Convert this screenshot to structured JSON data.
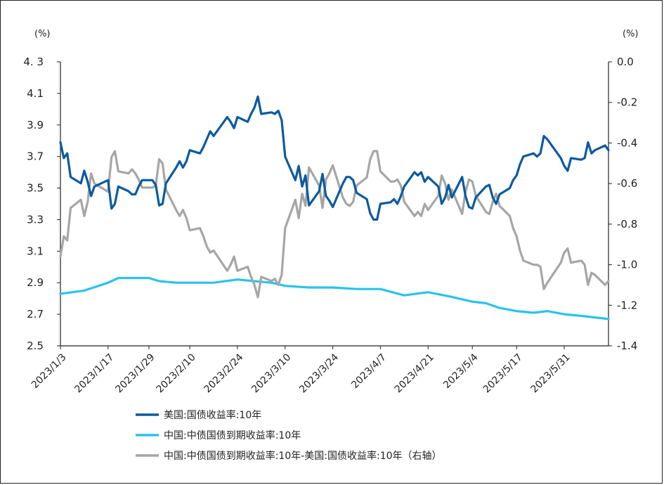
{
  "chart_data": {
    "type": "line",
    "left_axis": {
      "unit": "(%)",
      "ylim": [
        2.5,
        4.3
      ],
      "ticks": [
        "4. 3",
        "4.1",
        "3.9",
        "3.7",
        "3.5",
        "3.3",
        "3.1",
        "2.9",
        "2.7",
        "2.5"
      ]
    },
    "right_axis": {
      "unit": "(%)",
      "ylim": [
        -1.4,
        0.0
      ],
      "ticks": [
        "0.0",
        "-0.2",
        "-0.4",
        "-0.6",
        "-0.8",
        "-1.0",
        "-1.2",
        "-1.4"
      ]
    },
    "x_ticks": [
      "2023/1/3",
      "2023/1/17",
      "2023/1/29",
      "2023/2/10",
      "2023/2/24",
      "2023/3/10",
      "2023/3/24",
      "2023/4/7",
      "2023/4/21",
      "2023/5/4",
      "2023/5/17",
      "2023/5/31"
    ],
    "x_range": [
      "2023-01-03",
      "2023-06-13"
    ],
    "series": [
      {
        "name": "美国:国债收益率:10年",
        "axis": "left",
        "color": "#0b5aa0",
        "x": [
          "2023-01-03",
          "2023-01-04",
          "2023-01-05",
          "2023-01-06",
          "2023-01-09",
          "2023-01-10",
          "2023-01-11",
          "2023-01-12",
          "2023-01-13",
          "2023-01-17",
          "2023-01-18",
          "2023-01-19",
          "2023-01-20",
          "2023-01-23",
          "2023-01-24",
          "2023-01-25",
          "2023-01-26",
          "2023-01-27",
          "2023-01-30",
          "2023-01-31",
          "2023-02-01",
          "2023-02-02",
          "2023-02-03",
          "2023-02-06",
          "2023-02-07",
          "2023-02-08",
          "2023-02-09",
          "2023-02-10",
          "2023-02-13",
          "2023-02-14",
          "2023-02-15",
          "2023-02-16",
          "2023-02-17",
          "2023-02-21",
          "2023-02-22",
          "2023-02-23",
          "2023-02-24",
          "2023-02-27",
          "2023-02-28",
          "2023-03-01",
          "2023-03-02",
          "2023-03-03",
          "2023-03-06",
          "2023-03-07",
          "2023-03-08",
          "2023-03-09",
          "2023-03-10",
          "2023-03-13",
          "2023-03-14",
          "2023-03-15",
          "2023-03-16",
          "2023-03-17",
          "2023-03-20",
          "2023-03-21",
          "2023-03-22",
          "2023-03-23",
          "2023-03-24",
          "2023-03-27",
          "2023-03-28",
          "2023-03-29",
          "2023-03-30",
          "2023-03-31",
          "2023-04-03",
          "2023-04-04",
          "2023-04-05",
          "2023-04-06",
          "2023-04-07",
          "2023-04-10",
          "2023-04-11",
          "2023-04-12",
          "2023-04-13",
          "2023-04-14",
          "2023-04-17",
          "2023-04-18",
          "2023-04-19",
          "2023-04-20",
          "2023-04-21",
          "2023-04-24",
          "2023-04-25",
          "2023-04-26",
          "2023-04-27",
          "2023-04-28",
          "2023-05-01",
          "2023-05-02",
          "2023-05-03",
          "2023-05-04",
          "2023-05-05",
          "2023-05-08",
          "2023-05-09",
          "2023-05-10",
          "2023-05-11",
          "2023-05-12",
          "2023-05-15",
          "2023-05-16",
          "2023-05-17",
          "2023-05-18",
          "2023-05-19",
          "2023-05-22",
          "2023-05-23",
          "2023-05-24",
          "2023-05-25",
          "2023-05-26",
          "2023-05-30",
          "2023-05-31",
          "2023-06-01",
          "2023-06-02",
          "2023-06-05",
          "2023-06-06",
          "2023-06-07",
          "2023-06-08",
          "2023-06-09",
          "2023-06-12",
          "2023-06-13"
        ],
        "values": [
          3.79,
          3.69,
          3.72,
          3.57,
          3.53,
          3.61,
          3.54,
          3.45,
          3.51,
          3.55,
          3.37,
          3.4,
          3.51,
          3.48,
          3.46,
          3.46,
          3.51,
          3.55,
          3.55,
          3.52,
          3.39,
          3.4,
          3.53,
          3.63,
          3.67,
          3.63,
          3.67,
          3.74,
          3.72,
          3.76,
          3.81,
          3.86,
          3.83,
          3.95,
          3.92,
          3.88,
          3.95,
          3.92,
          3.97,
          4.01,
          4.08,
          3.97,
          3.98,
          3.97,
          3.99,
          3.93,
          3.7,
          3.55,
          3.64,
          3.51,
          3.58,
          3.39,
          3.48,
          3.59,
          3.45,
          3.42,
          3.38,
          3.53,
          3.57,
          3.57,
          3.55,
          3.47,
          3.43,
          3.34,
          3.3,
          3.3,
          3.4,
          3.41,
          3.43,
          3.4,
          3.45,
          3.51,
          3.6,
          3.58,
          3.6,
          3.54,
          3.57,
          3.51,
          3.4,
          3.44,
          3.52,
          3.44,
          3.57,
          3.45,
          3.38,
          3.37,
          3.44,
          3.51,
          3.52,
          3.44,
          3.4,
          3.46,
          3.5,
          3.55,
          3.58,
          3.65,
          3.7,
          3.72,
          3.7,
          3.72,
          3.83,
          3.81,
          3.69,
          3.64,
          3.61,
          3.69,
          3.68,
          3.69,
          3.79,
          3.72,
          3.74,
          3.77,
          3.74
        ]
      },
      {
        "name": "中国:中债国债到期收益率:10年",
        "axis": "left",
        "color": "#29c3ec",
        "x": [
          "2023-01-03",
          "2023-01-10",
          "2023-01-17",
          "2023-01-20",
          "2023-01-29",
          "2023-02-01",
          "2023-02-06",
          "2023-02-10",
          "2023-02-17",
          "2023-02-24",
          "2023-03-01",
          "2023-03-06",
          "2023-03-10",
          "2023-03-17",
          "2023-03-24",
          "2023-03-31",
          "2023-04-07",
          "2023-04-14",
          "2023-04-21",
          "2023-04-28",
          "2023-05-04",
          "2023-05-08",
          "2023-05-12",
          "2023-05-17",
          "2023-05-22",
          "2023-05-26",
          "2023-05-31",
          "2023-06-05",
          "2023-06-09",
          "2023-06-13"
        ],
        "values": [
          2.83,
          2.85,
          2.9,
          2.93,
          2.93,
          2.91,
          2.9,
          2.9,
          2.9,
          2.92,
          2.91,
          2.9,
          2.88,
          2.87,
          2.87,
          2.86,
          2.86,
          2.82,
          2.84,
          2.81,
          2.78,
          2.77,
          2.74,
          2.72,
          2.71,
          2.72,
          2.7,
          2.69,
          2.68,
          2.67
        ]
      },
      {
        "name": "中国:中债国债到期收益率:10年-美国:国债收益率:10年（右轴）",
        "axis": "right",
        "color": "#a6a6a6",
        "x": [
          "2023-01-03",
          "2023-01-04",
          "2023-01-05",
          "2023-01-06",
          "2023-01-09",
          "2023-01-10",
          "2023-01-11",
          "2023-01-12",
          "2023-01-13",
          "2023-01-17",
          "2023-01-18",
          "2023-01-19",
          "2023-01-20",
          "2023-01-23",
          "2023-01-24",
          "2023-01-25",
          "2023-01-26",
          "2023-01-27",
          "2023-01-30",
          "2023-01-31",
          "2023-02-01",
          "2023-02-02",
          "2023-02-03",
          "2023-02-06",
          "2023-02-07",
          "2023-02-08",
          "2023-02-09",
          "2023-02-10",
          "2023-02-13",
          "2023-02-14",
          "2023-02-15",
          "2023-02-16",
          "2023-02-17",
          "2023-02-21",
          "2023-02-22",
          "2023-02-23",
          "2023-02-24",
          "2023-02-27",
          "2023-02-28",
          "2023-03-01",
          "2023-03-02",
          "2023-03-03",
          "2023-03-06",
          "2023-03-07",
          "2023-03-08",
          "2023-03-09",
          "2023-03-10",
          "2023-03-13",
          "2023-03-14",
          "2023-03-15",
          "2023-03-16",
          "2023-03-17",
          "2023-03-20",
          "2023-03-21",
          "2023-03-22",
          "2023-03-23",
          "2023-03-24",
          "2023-03-27",
          "2023-03-28",
          "2023-03-29",
          "2023-03-30",
          "2023-03-31",
          "2023-04-03",
          "2023-04-04",
          "2023-04-05",
          "2023-04-06",
          "2023-04-07",
          "2023-04-10",
          "2023-04-11",
          "2023-04-12",
          "2023-04-13",
          "2023-04-14",
          "2023-04-17",
          "2023-04-18",
          "2023-04-19",
          "2023-04-20",
          "2023-04-21",
          "2023-04-24",
          "2023-04-25",
          "2023-04-26",
          "2023-04-27",
          "2023-04-28",
          "2023-05-01",
          "2023-05-02",
          "2023-05-03",
          "2023-05-04",
          "2023-05-05",
          "2023-05-08",
          "2023-05-09",
          "2023-05-10",
          "2023-05-11",
          "2023-05-12",
          "2023-05-15",
          "2023-05-16",
          "2023-05-17",
          "2023-05-18",
          "2023-05-19",
          "2023-05-22",
          "2023-05-23",
          "2023-05-24",
          "2023-05-25",
          "2023-05-26",
          "2023-05-30",
          "2023-05-31",
          "2023-06-01",
          "2023-06-02",
          "2023-06-05",
          "2023-06-06",
          "2023-06-07",
          "2023-06-08",
          "2023-06-09",
          "2023-06-12",
          "2023-06-13"
        ],
        "values": [
          -0.96,
          -0.86,
          -0.88,
          -0.72,
          -0.68,
          -0.76,
          -0.69,
          -0.55,
          -0.6,
          -0.64,
          -0.47,
          -0.44,
          -0.54,
          -0.55,
          -0.53,
          -0.55,
          -0.58,
          -0.62,
          -0.62,
          -0.61,
          -0.48,
          -0.5,
          -0.63,
          -0.73,
          -0.76,
          -0.73,
          -0.77,
          -0.83,
          -0.82,
          -0.86,
          -0.91,
          -0.94,
          -0.93,
          -1.03,
          -1.0,
          -0.96,
          -1.03,
          -1.01,
          -1.06,
          -1.1,
          -1.16,
          -1.06,
          -1.08,
          -1.07,
          -1.1,
          -1.05,
          -0.82,
          -0.68,
          -0.77,
          -0.65,
          -0.71,
          -0.52,
          -0.61,
          -0.72,
          -0.58,
          -0.55,
          -0.51,
          -0.67,
          -0.7,
          -0.71,
          -0.69,
          -0.61,
          -0.57,
          -0.48,
          -0.44,
          -0.44,
          -0.54,
          -0.59,
          -0.59,
          -0.58,
          -0.61,
          -0.69,
          -0.76,
          -0.74,
          -0.76,
          -0.7,
          -0.73,
          -0.66,
          -0.56,
          -0.6,
          -0.68,
          -0.63,
          -0.75,
          -0.64,
          -0.58,
          -0.59,
          -0.66,
          -0.74,
          -0.75,
          -0.69,
          -0.65,
          -0.71,
          -0.76,
          -0.82,
          -0.86,
          -0.93,
          -0.98,
          -1.0,
          -1.0,
          -1.01,
          -1.12,
          -1.09,
          -0.99,
          -0.94,
          -0.92,
          -0.99,
          -0.98,
          -1.0,
          -1.1,
          -1.04,
          -1.05,
          -1.1,
          -1.08
        ]
      }
    ]
  }
}
